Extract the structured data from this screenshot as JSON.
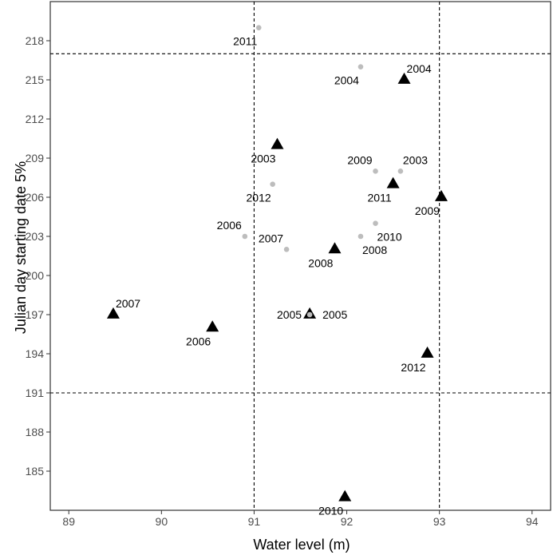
{
  "chart_data": {
    "type": "scatter",
    "xlabel": "Water level (m)",
    "ylabel": "Julian day starting date 5%",
    "xlim": [
      88.8,
      94.2
    ],
    "ylim": [
      182,
      221
    ],
    "x_ticks": [
      89,
      90,
      91,
      92,
      93,
      94
    ],
    "x_tick_labels": [
      "89",
      "90",
      "91",
      "92",
      "93",
      "94"
    ],
    "y_ticks": [
      185,
      188,
      191,
      194,
      197,
      200,
      203,
      206,
      209,
      212,
      215,
      218
    ],
    "y_tick_labels": [
      "185",
      "188",
      "191",
      "194",
      "197",
      "200",
      "203",
      "206",
      "209",
      "212",
      "215",
      "218"
    ],
    "grid": false,
    "reference_lines": {
      "vertical": [
        91,
        93
      ],
      "horizontal": [
        191,
        217
      ]
    },
    "colors": {
      "triangle": "#000000",
      "dot": "#bdbdbd",
      "reference_line": "#000000",
      "axis": "#333333",
      "tick_label": "#4d4d4d"
    },
    "series": [
      {
        "marker": "triangle",
        "points": [
          {
            "x": 92.62,
            "y": 215,
            "label": "2004",
            "label_pos": "above-right"
          },
          {
            "x": 91.25,
            "y": 210,
            "label": "2003",
            "label_pos": "below-left"
          },
          {
            "x": 92.5,
            "y": 207,
            "label": "2011",
            "label_pos": "below-left"
          },
          {
            "x": 93.02,
            "y": 206,
            "label": "2009",
            "label_pos": "below-left"
          },
          {
            "x": 91.87,
            "y": 202,
            "label": "2008",
            "label_pos": "below-left"
          },
          {
            "x": 89.48,
            "y": 197,
            "label": "2007",
            "label_pos": "above-right"
          },
          {
            "x": 91.6,
            "y": 197,
            "label": "2005",
            "label_pos": "right"
          },
          {
            "x": 90.55,
            "y": 196,
            "label": "2006",
            "label_pos": "below-left"
          },
          {
            "x": 92.87,
            "y": 194,
            "label": "2012",
            "label_pos": "below-left"
          },
          {
            "x": 91.98,
            "y": 183,
            "label": "2010",
            "label_pos": "below-left"
          }
        ]
      },
      {
        "marker": "dot",
        "points": [
          {
            "x": 91.05,
            "y": 219,
            "label": "2011",
            "label_pos": "below-left"
          },
          {
            "x": 92.15,
            "y": 216,
            "label": "2004",
            "label_pos": "below-left"
          },
          {
            "x": 92.31,
            "y": 208,
            "label": "2009",
            "label_pos": "above-left"
          },
          {
            "x": 92.58,
            "y": 208,
            "label": "2003",
            "label_pos": "above-right"
          },
          {
            "x": 91.2,
            "y": 207,
            "label": "2012",
            "label_pos": "below-left"
          },
          {
            "x": 92.31,
            "y": 204,
            "label": "2010",
            "label_pos": "below-right"
          },
          {
            "x": 90.9,
            "y": 203,
            "label": "2006",
            "label_pos": "above-left"
          },
          {
            "x": 92.15,
            "y": 203,
            "label": "2008",
            "label_pos": "below-right"
          },
          {
            "x": 91.35,
            "y": 202,
            "label": "2007",
            "label_pos": "above-left"
          },
          {
            "x": 91.6,
            "y": 197,
            "label": "2005",
            "label_pos": "left"
          }
        ]
      }
    ]
  }
}
